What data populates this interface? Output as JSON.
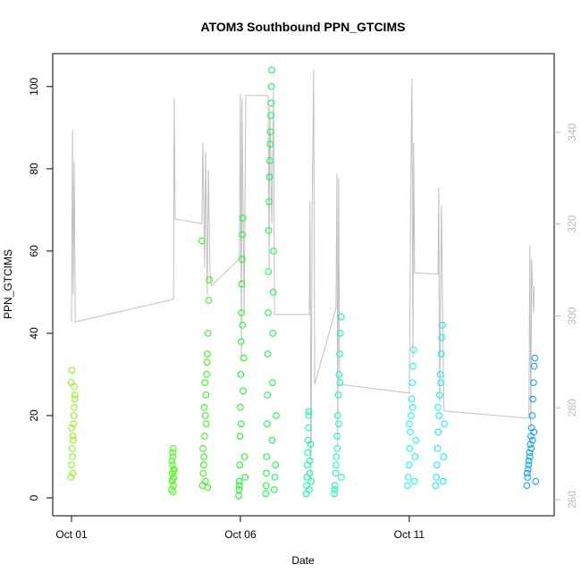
{
  "chart_data": {
    "type": "scatter",
    "title": "ATOM3 Southbound PPN_GTCIMS",
    "xlabel": "Date",
    "ylabel": "PPN_GTCIMS",
    "xlim": [
      -0.556,
      14.29
    ],
    "ylim": [
      -4.35,
      108.0
    ],
    "y2lim": [
      256.5,
      357.1
    ],
    "xticks": [
      {
        "value": 0,
        "label": "Oct 01"
      },
      {
        "value": 5,
        "label": "Oct 06"
      },
      {
        "value": 10,
        "label": "Oct 11"
      }
    ],
    "yticks": [
      0,
      20,
      40,
      60,
      80,
      100
    ],
    "y2ticks": [
      260,
      280,
      300,
      320,
      340
    ],
    "series": [
      {
        "color": "#80ff00",
        "x": [
          -0.02,
          0.0,
          0.02,
          0.04,
          0.06,
          0.08,
          0.1,
          -0.01,
          0.01,
          0.03,
          0.05,
          0.07,
          0.09,
          0.0,
          0.04,
          0.08
        ],
        "values": [
          5,
          8,
          12,
          15,
          18,
          22,
          25,
          28,
          31,
          10,
          14,
          20,
          24,
          17,
          6,
          27
        ]
      },
      {
        "color": "#40ff00",
        "x": [
          2.96,
          2.97,
          2.98,
          2.99,
          3.0,
          3.01,
          3.02,
          3.03,
          3.04,
          2.97,
          2.99,
          3.01,
          3.03,
          3.0
        ],
        "values": [
          2,
          4,
          6,
          8,
          10,
          12,
          3,
          5,
          7,
          9,
          11,
          1.5,
          6.5,
          4.5
        ]
      },
      {
        "color": "#22ff00",
        "x": [
          3.88,
          3.9,
          3.92,
          3.94,
          3.96,
          3.98,
          4.0,
          4.02,
          4.04,
          4.06,
          4.08,
          3.86,
          3.89,
          3.91,
          3.93,
          3.95,
          3.97,
          3.99,
          4.01,
          4.03
        ],
        "values": [
          3,
          6,
          10,
          15,
          20,
          25,
          30,
          35,
          40,
          48,
          53,
          62.5,
          12,
          8,
          22,
          28,
          4,
          18,
          33,
          2.5
        ]
      },
      {
        "color": "#00ff1a",
        "x": [
          4.95,
          4.96,
          4.97,
          4.98,
          4.99,
          5.0,
          5.01,
          5.02,
          5.03,
          5.04,
          5.05,
          5.06,
          5.07,
          5.08,
          5.1,
          5.12,
          5.14,
          4.97,
          5.02,
          5.06
        ],
        "values": [
          0.5,
          2,
          4,
          8,
          15,
          22,
          30,
          38,
          45,
          52,
          58,
          64,
          68,
          26,
          34,
          10,
          5,
          3,
          18,
          42
        ]
      },
      {
        "color": "#00ff40",
        "x": [
          5.75,
          5.76,
          5.77,
          5.78,
          5.79,
          5.8,
          5.81,
          5.82,
          5.83,
          5.84,
          5.85,
          5.86,
          5.87,
          5.88,
          5.89,
          5.9,
          5.91,
          5.92,
          5.93,
          5.94,
          5.95,
          5.96,
          5.97,
          5.98,
          6.0,
          6.02,
          6.04,
          6.06
        ],
        "values": [
          1,
          3,
          6,
          10,
          18,
          25,
          35,
          45,
          55,
          65,
          72,
          78,
          82,
          86,
          89,
          93,
          96,
          100,
          104,
          14,
          28,
          40,
          50,
          60,
          2,
          5,
          8,
          20
        ]
      },
      {
        "color": "#00ff99",
        "x": [
          6.95,
          6.96,
          6.97,
          6.98,
          6.99,
          7.0,
          7.01,
          7.02,
          7.03,
          7.04,
          7.05,
          7.06,
          7.08,
          7.1
        ],
        "values": [
          1,
          3,
          5,
          8,
          11,
          14,
          17,
          20,
          21,
          2,
          6,
          9,
          13,
          4
        ]
      },
      {
        "color": "#00ffbb",
        "x": [
          7.78,
          7.8,
          7.82,
          7.84,
          7.86,
          7.88,
          7.9,
          7.92,
          7.94,
          7.96,
          7.98,
          7.79,
          7.83,
          7.87,
          7.91,
          7.95,
          7.99
        ],
        "values": [
          1,
          3,
          6,
          10,
          15,
          20,
          25,
          30,
          35,
          40,
          44,
          2,
          8,
          12,
          18,
          28,
          5
        ]
      },
      {
        "color": "#00ffff",
        "x": [
          9.95,
          9.97,
          9.99,
          10.01,
          10.03,
          10.05,
          10.07,
          10.09,
          10.11,
          10.13,
          10.15,
          10.17,
          10.19,
          10.0,
          10.1
        ],
        "values": [
          3,
          5,
          8,
          12,
          16,
          20,
          24,
          28,
          32,
          36,
          4,
          10,
          14,
          18,
          22
        ]
      },
      {
        "color": "#00f0ff",
        "x": [
          10.78,
          10.8,
          10.82,
          10.84,
          10.86,
          10.88,
          10.9,
          10.92,
          10.94,
          10.96,
          10.98,
          11.0,
          11.02,
          11.04,
          10.85,
          10.93
        ],
        "values": [
          3,
          5,
          8,
          12,
          16,
          20,
          25,
          30,
          35,
          39,
          42,
          4,
          10,
          18,
          22,
          28
        ]
      },
      {
        "color": "#009fff",
        "x": [
          13.48,
          13.5,
          13.52,
          13.54,
          13.56,
          13.58,
          13.6,
          13.62,
          13.64,
          13.66,
          13.68,
          13.7,
          13.72,
          13.74,
          13.49,
          13.53,
          13.57,
          13.61,
          13.65,
          13.69
        ],
        "values": [
          3,
          5,
          7,
          9,
          11,
          13,
          15,
          17,
          20,
          24,
          28,
          32,
          34,
          4,
          6,
          8,
          10,
          12,
          14,
          16
        ]
      },
      {
        "color": "#c0c0c0",
        "axis": "y2",
        "kind": "line",
        "x": [
          0,
          0.03,
          0.05,
          0.08,
          0.11,
          3.02,
          3.04,
          3.07,
          3.86,
          3.89,
          3.94,
          3.97,
          4.02,
          4.05,
          4.1,
          4.13,
          4.97,
          5.0,
          5.03,
          5.05,
          5.11,
          5.16,
          5.82,
          5.85,
          5.87,
          5.93,
          5.98,
          6.01,
          7.04,
          7.06,
          7.09,
          7.12,
          7.17,
          7.2,
          7.83,
          7.86,
          7.88,
          7.91,
          7.94,
          10.0,
          10.05,
          10.08,
          10.11,
          10.13,
          10.16,
          10.85,
          10.87,
          10.9,
          10.95,
          11.01,
          11.03,
          13.54,
          13.57,
          13.6,
          13.62,
          13.68,
          13.7
        ],
        "values": [
          298.7,
          340.6,
          304.6,
          333.8,
          298.7,
          303.6,
          347.4,
          321.1,
          320.1,
          337.7,
          310.4,
          335.7,
          304.6,
          331.8,
          310.4,
          306.5,
          312.4,
          348.4,
          291.0,
          347.4,
          300.7,
          348.0,
          348.0,
          310.4,
          345.5,
          320.1,
          349.3,
          300.3,
          300.3,
          325.0,
          263.7,
          320.1,
          353.6,
          285.1,
          301.7,
          330.9,
          271.5,
          330.0,
          285.1,
          283.2,
          332.8,
          351.7,
          291.0,
          337.7,
          309.4,
          309.1,
          327.9,
          281.2,
          324.0,
          287.1,
          279.3,
          277.7,
          315.3,
          271.5,
          312.4,
          300.7,
          306.5
        ]
      }
    ]
  }
}
